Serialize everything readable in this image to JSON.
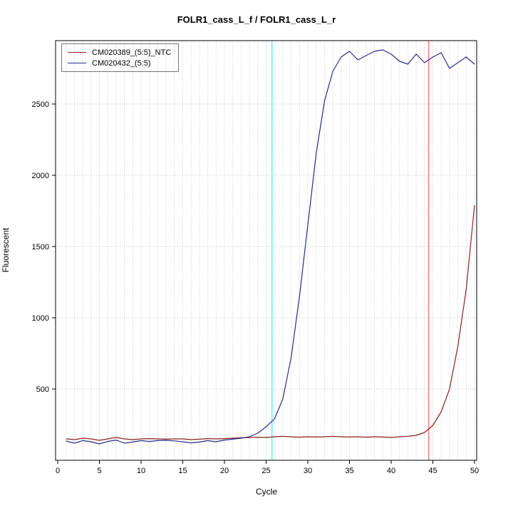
{
  "title": "FOLR1_cass_L_f / FOLR1_cass_L_r",
  "chart_data": {
    "type": "line",
    "title": "FOLR1_cass_L_f / FOLR1_cass_L_r",
    "xlabel": "Cycle",
    "ylabel": "Fluorescent",
    "xlim": [
      0,
      50
    ],
    "ylim": [
      0,
      2945
    ],
    "xticks": [
      0,
      5,
      10,
      15,
      20,
      25,
      30,
      35,
      40,
      45,
      50
    ],
    "yticks": [
      500,
      1000,
      1500,
      2000,
      2500
    ],
    "grid": "dotted",
    "grid_color": "#c9c9c9",
    "legend_position": "top-left",
    "x": [
      1,
      2,
      3,
      4,
      5,
      6,
      7,
      8,
      9,
      10,
      11,
      12,
      13,
      14,
      15,
      16,
      17,
      18,
      19,
      20,
      21,
      22,
      23,
      24,
      25,
      26,
      27,
      28,
      29,
      30,
      31,
      32,
      33,
      34,
      35,
      36,
      37,
      38,
      39,
      40,
      41,
      42,
      43,
      44,
      45,
      46,
      47,
      48,
      49,
      50
    ],
    "series": [
      {
        "name": "CM020389_(5:5)_NTC",
        "color": "#8b2020",
        "values": [
          150,
          145,
          155,
          150,
          140,
          150,
          160,
          150,
          145,
          150,
          152,
          150,
          148,
          150,
          150,
          145,
          148,
          152,
          150,
          152,
          155,
          158,
          160,
          162,
          160,
          165,
          168,
          165,
          162,
          165,
          163,
          165,
          168,
          165,
          163,
          165,
          162,
          165,
          163,
          160,
          165,
          168,
          175,
          195,
          245,
          340,
          500,
          800,
          1200,
          1790
        ]
      },
      {
        "name": "CM020432_(5:5)",
        "color": "#2b2b8f",
        "values": [
          135,
          120,
          138,
          130,
          115,
          132,
          142,
          120,
          128,
          138,
          132,
          138,
          140,
          136,
          130,
          122,
          128,
          138,
          130,
          142,
          148,
          155,
          165,
          190,
          235,
          290,
          430,
          720,
          1150,
          1650,
          2150,
          2520,
          2730,
          2830,
          2870,
          2810,
          2840,
          2870,
          2880,
          2850,
          2800,
          2780,
          2850,
          2790,
          2830,
          2860,
          2750,
          2790,
          2830,
          2780
        ]
      }
    ],
    "threshold_lines": [
      {
        "x": 25.7,
        "color": "#7fefff",
        "width": 2
      },
      {
        "x": 44.5,
        "color": "#e98080",
        "width": 1.5
      }
    ]
  }
}
